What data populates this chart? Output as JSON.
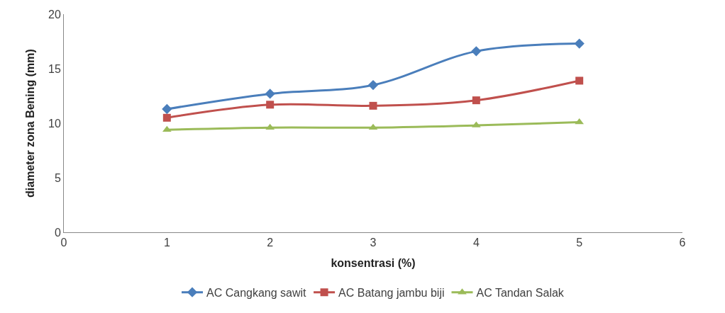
{
  "chart_data": {
    "type": "line",
    "xlabel": "konsentrasi (%)",
    "ylabel": "diameter zona Bening (mm)",
    "x": [
      1,
      2,
      3,
      4,
      5
    ],
    "xlim": [
      0,
      6
    ],
    "xticks": [
      0,
      1,
      2,
      3,
      4,
      5,
      6
    ],
    "ylim": [
      0,
      20
    ],
    "yticks": [
      0,
      5,
      10,
      15,
      20
    ],
    "grid": false,
    "legend": "bottom",
    "series": [
      {
        "name": "AC Cangkang sawit",
        "color": "#4a7ebb",
        "marker": "diamond",
        "values": [
          11.3,
          12.7,
          13.5,
          16.6,
          17.3
        ]
      },
      {
        "name": "AC Batang jambu biji",
        "color": "#c0504d",
        "marker": "square",
        "values": [
          10.5,
          11.7,
          11.6,
          12.1,
          13.9
        ]
      },
      {
        "name": "AC Tandan Salak",
        "color": "#9bbb59",
        "marker": "triangle",
        "values": [
          9.4,
          9.6,
          9.6,
          9.8,
          10.1
        ]
      }
    ]
  }
}
